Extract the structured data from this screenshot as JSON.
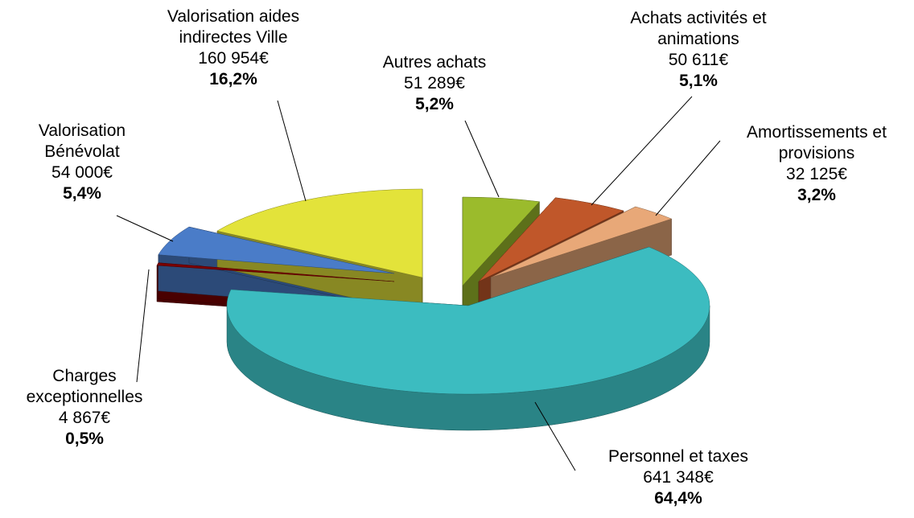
{
  "chart_data": {
    "type": "pie",
    "categories": [
      "Autres achats",
      "Achats activités et animations",
      "Amortissements et provisions",
      "Personnel et taxes",
      "Charges exceptionnelles",
      "Valorisation Bénévolat",
      "Valorisation aides indirectes Ville"
    ],
    "values": [
      51289,
      50611,
      32125,
      641348,
      4867,
      54000,
      160954
    ],
    "value_labels": [
      "51 289€",
      "50 611€",
      "32 125€",
      "641 348€",
      "4 867€",
      "54 000€",
      "160 954€"
    ],
    "percentages": [
      5.2,
      5.1,
      3.2,
      64.4,
      0.5,
      5.4,
      16.2
    ],
    "percentage_labels": [
      "5,2%",
      "5,1%",
      "3,2%",
      "64,4%",
      "0,5%",
      "5,4%",
      "16,2%"
    ],
    "colors": [
      "#9bbb2c",
      "#c0572a",
      "#e8a878",
      "#3cbcc0",
      "#7a0000",
      "#4a7cc8",
      "#e3e33a"
    ]
  }
}
